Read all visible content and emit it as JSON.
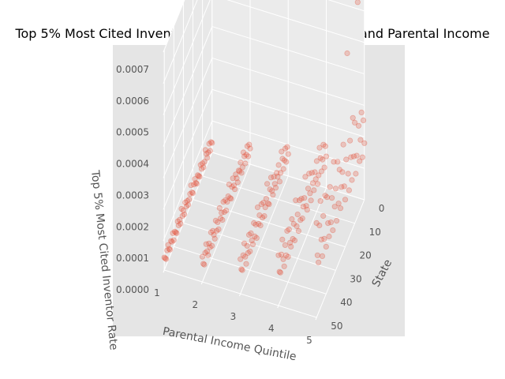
{
  "chart_data": {
    "type": "scatter",
    "projection": "3d",
    "title": "Top 5% Most Cited Inventor Rate and relation to State and Parental Income",
    "xlabel": "Parental Income Quintile",
    "ylabel": "State",
    "zlabel": "Top 5% Most Cited Inventor Rate",
    "x_ticks": [
      "1",
      "2",
      "3",
      "4",
      "5"
    ],
    "y_ticks": [
      "0",
      "10",
      "20",
      "30",
      "40",
      "50"
    ],
    "z_ticks": [
      "0.0000",
      "0.0001",
      "0.0002",
      "0.0003",
      "0.0004",
      "0.0005",
      "0.0006",
      "0.0007"
    ],
    "xlim": [
      1,
      5
    ],
    "ylim": [
      0,
      51
    ],
    "zlim": [
      0,
      0.0007
    ],
    "grid": true,
    "marker_color": "#e24a33",
    "marker_alpha": 0.25,
    "background_color": "#e5e5e5",
    "series": [
      {
        "x": 1,
        "y": [
          0,
          1,
          2,
          3,
          4,
          5,
          6,
          7,
          8,
          9,
          10,
          11,
          12,
          13,
          14,
          15,
          16,
          17,
          18,
          19,
          20,
          21,
          22,
          23,
          24,
          25,
          26,
          27,
          28,
          29,
          30,
          31,
          32,
          33,
          34,
          35,
          36,
          37,
          38,
          39,
          40,
          41,
          42,
          43,
          44,
          45,
          46,
          47,
          48,
          49,
          50
        ],
        "z": [
          3e-05,
          4e-05,
          2e-05,
          5e-05,
          3e-05,
          2e-05,
          4e-05,
          6e-05,
          3e-05,
          2e-05,
          4e-05,
          3e-05,
          5e-05,
          2e-05,
          3e-05,
          4e-05,
          2e-05,
          3e-05,
          5e-05,
          4e-05,
          2e-05,
          3e-05,
          6e-05,
          4e-05,
          3e-05,
          2e-05,
          4e-05,
          3e-05,
          5e-05,
          2e-05,
          4e-05,
          3e-05,
          6e-05,
          2e-05,
          4e-05,
          3e-05,
          5e-05,
          2e-05,
          3e-05,
          4e-05,
          2e-05,
          5e-05,
          3e-05,
          4e-05,
          2e-05,
          3e-05,
          5e-05,
          4e-05,
          2e-05,
          3e-05,
          4e-05
        ]
      },
      {
        "x": 2,
        "y": [
          0,
          1,
          2,
          3,
          4,
          5,
          6,
          7,
          8,
          9,
          10,
          11,
          12,
          13,
          14,
          15,
          16,
          17,
          18,
          19,
          20,
          21,
          22,
          23,
          24,
          25,
          26,
          27,
          28,
          29,
          30,
          31,
          32,
          33,
          34,
          35,
          36,
          37,
          38,
          39,
          40,
          41,
          42,
          43,
          44,
          45,
          46,
          47,
          48,
          49,
          50
        ],
        "z": [
          5e-05,
          7e-05,
          4e-05,
          8e-05,
          6e-05,
          4e-05,
          7e-05,
          9e-05,
          5e-05,
          4e-05,
          8e-05,
          6e-05,
          7e-05,
          4e-05,
          6e-05,
          8e-05,
          4e-05,
          6e-05,
          9e-05,
          7e-05,
          4e-05,
          5e-05,
          0.0001,
          7e-05,
          6e-05,
          4e-05,
          8e-05,
          5e-05,
          9e-05,
          4e-05,
          7e-05,
          6e-05,
          0.0001,
          4e-05,
          7e-05,
          5e-05,
          9e-05,
          4e-05,
          6e-05,
          8e-05,
          4e-05,
          9e-05,
          5e-05,
          7e-05,
          4e-05,
          6e-05,
          9e-05,
          7e-05,
          4e-05,
          5e-05,
          8e-05
        ]
      },
      {
        "x": 3,
        "y": [
          0,
          1,
          2,
          3,
          4,
          5,
          6,
          7,
          8,
          9,
          10,
          11,
          12,
          13,
          14,
          15,
          16,
          17,
          18,
          19,
          20,
          21,
          22,
          23,
          24,
          25,
          26,
          27,
          28,
          29,
          30,
          31,
          32,
          33,
          34,
          35,
          36,
          37,
          38,
          39,
          40,
          41,
          42,
          43,
          44,
          45,
          46,
          47,
          48,
          49,
          50
        ],
        "z": [
          7e-05,
          0.0001,
          6e-05,
          0.00011,
          8e-05,
          6e-05,
          0.0001,
          0.00013,
          7e-05,
          5e-05,
          0.00011,
          8e-05,
          0.0001,
          6e-05,
          8e-05,
          0.00011,
          6e-05,
          8e-05,
          0.00013,
          0.0001,
          6e-05,
          7e-05,
          0.00014,
          0.0001,
          8e-05,
          6e-05,
          0.00011,
          7e-05,
          0.00012,
          6e-05,
          0.0001,
          8e-05,
          0.00014,
          5e-05,
          0.0001,
          7e-05,
          0.00012,
          6e-05,
          8e-05,
          0.00011,
          6e-05,
          0.00012,
          7e-05,
          0.0001,
          5e-05,
          8e-05,
          0.00013,
          0.0001,
          6e-05,
          7e-05,
          0.00011
        ]
      },
      {
        "x": 4,
        "y": [
          0,
          1,
          2,
          3,
          4,
          5,
          6,
          7,
          8,
          9,
          10,
          11,
          12,
          13,
          14,
          15,
          16,
          17,
          18,
          19,
          20,
          21,
          22,
          23,
          24,
          25,
          26,
          27,
          28,
          29,
          30,
          31,
          32,
          33,
          34,
          35,
          36,
          37,
          38,
          39,
          40,
          41,
          42,
          43,
          44,
          45,
          46,
          47,
          48,
          49,
          50
        ],
        "z": [
          0.0001,
          0.00014,
          8e-05,
          0.00016,
          0.00012,
          9e-05,
          0.00014,
          0.00018,
          0.0001,
          8e-05,
          0.00016,
          0.00011,
          0.00014,
          9e-05,
          0.00012,
          0.00016,
          8e-05,
          0.00011,
          0.00018,
          0.00014,
          8e-05,
          0.0001,
          0.0002,
          0.00014,
          0.00012,
          9e-05,
          0.00016,
          0.0001,
          0.00017,
          8e-05,
          0.00014,
          0.00011,
          0.0002,
          8e-05,
          0.00014,
          0.0001,
          0.00017,
          9e-05,
          0.00011,
          0.00016,
          8e-05,
          0.00017,
          0.0001,
          0.00014,
          8e-05,
          0.00011,
          0.00018,
          0.00014,
          9e-05,
          0.0001,
          0.00016
        ]
      },
      {
        "x": 5,
        "y": [
          0,
          1,
          2,
          3,
          4,
          5,
          6,
          7,
          8,
          9,
          10,
          11,
          12,
          13,
          14,
          15,
          16,
          17,
          18,
          19,
          20,
          21,
          22,
          23,
          24,
          25,
          26,
          27,
          28,
          29,
          30,
          31,
          32,
          33,
          34,
          35,
          36,
          37,
          38,
          39,
          40,
          41,
          42,
          43,
          44,
          45,
          46,
          47,
          48,
          49,
          50
        ],
        "z": [
          0.00018,
          0.00026,
          0.00015,
          0.0003,
          0.00022,
          0.00016,
          0.00028,
          0.00068,
          0.0002,
          0.00015,
          0.00032,
          0.00022,
          0.00035,
          0.00016,
          0.00024,
          0.0003,
          0.00015,
          0.00021,
          0.0006,
          0.00027,
          0.00015,
          0.0002,
          0.00034,
          0.00026,
          0.00022,
          0.00016,
          0.00029,
          0.00019,
          0.00033,
          0.00015,
          0.00026,
          0.00021,
          0.00036,
          0.00015,
          0.00026,
          0.00019,
          0.00031,
          0.00016,
          0.00021,
          0.0003,
          0.00015,
          0.00032,
          0.00019,
          0.00027,
          0.00015,
          0.00021,
          0.00034,
          0.00027,
          0.00016,
          0.00019,
          0.0003
        ]
      }
    ]
  }
}
